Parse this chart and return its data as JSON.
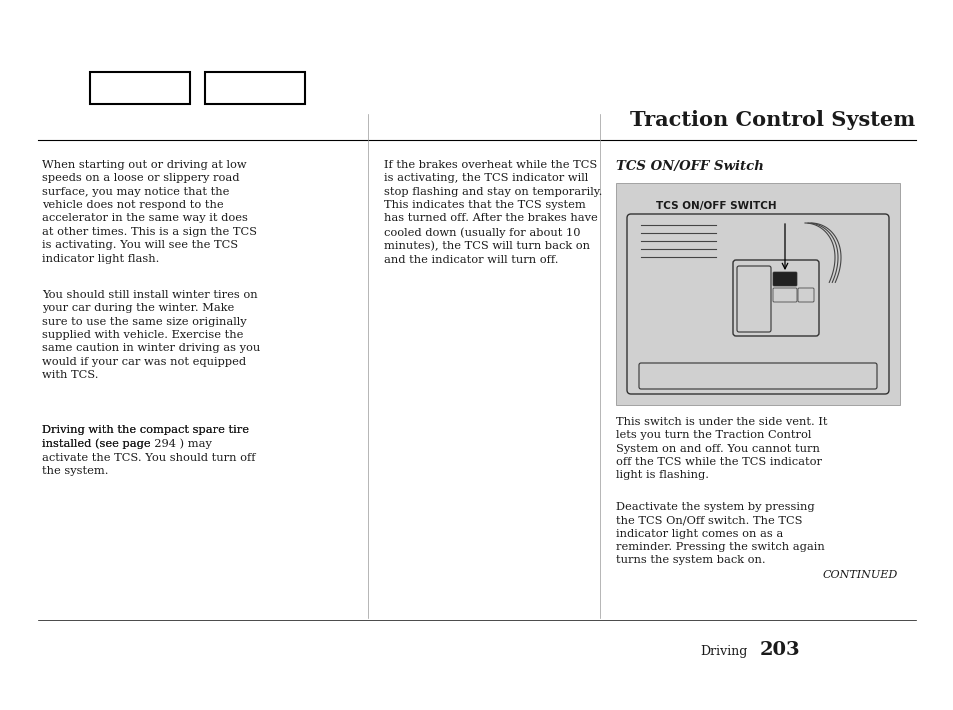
{
  "bg_color": "#ffffff",
  "title": "Traction Control System",
  "title_fontsize": 15,
  "page_number": "203",
  "page_label": "Driving",
  "continued_text": "CONTINUED",
  "text_fontsize": 8.2,
  "col1_paragraphs": [
    "When starting out or driving at low\nspeeds on a loose or slippery road\nsurface, you may notice that the\nvehicle does not respond to the\naccelerator in the same way it does\nat other times. This is a sign the TCS\nis activating. You will see the TCS\nindicator light flash.",
    "You should still install winter tires on\nyour car during the winter. Make\nsure to use the same size originally\nsupplied with vehicle. Exercise the\nsame caution in winter driving as you\nwould if your car was not equipped\nwith TCS.",
    "Driving with the compact spare tire\ninstalled (see page 294 ) may\nactivate the TCS. You should turn off\nthe system."
  ],
  "col2_text": "If the brakes overheat while the TCS\nis activating, the TCS indicator will\nstop flashing and stay on temporarily.\nThis indicates that the TCS system\nhas turned off. After the brakes have\ncooled down (usually for about 10\nminutes), the TCS will turn back on\nand the indicator will turn off.",
  "col3_heading": "TCS ON/OFF Switch",
  "col3_img_label": "TCS ON/OFF SWITCH",
  "col3_text1": "This switch is under the side vent. It\nlets you turn the Traction Control\nSystem on and off. You cannot turn\noff the TCS while the TCS indicator\nlight is flashing.",
  "col3_text2": "Deactivate the system by pressing\nthe TCS On/Off switch. The TCS\nindicator light comes on as a\nreminder. Pressing the switch again\nturns the system back on.",
  "page_link_color": "#0000cc",
  "image_bg": "#d0d0d0"
}
